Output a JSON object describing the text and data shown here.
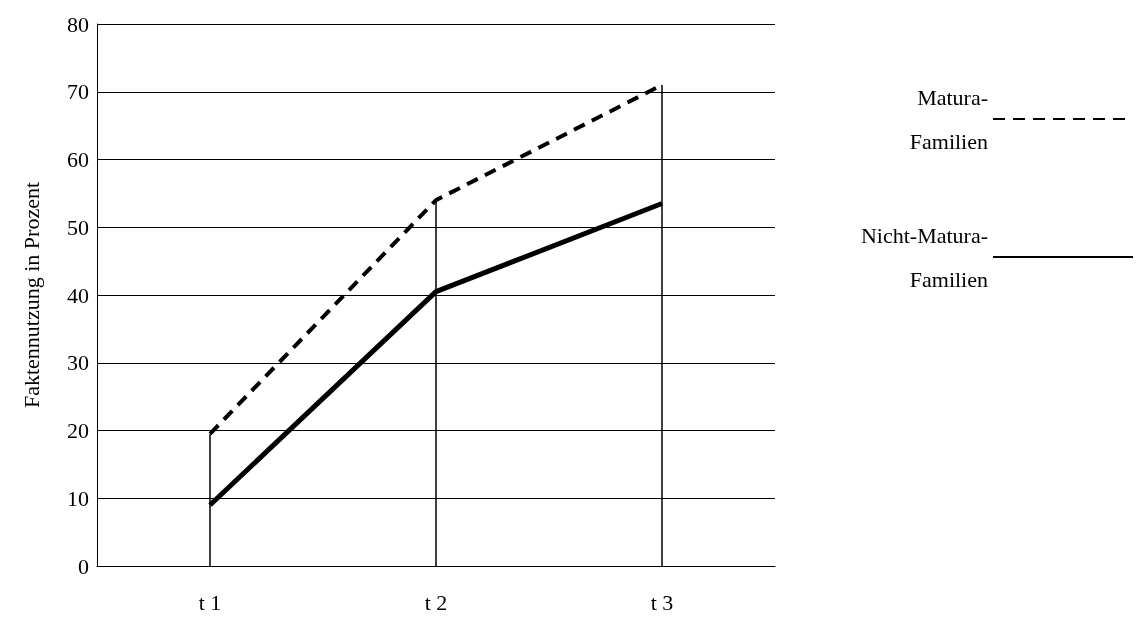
{
  "chart_data": {
    "type": "line",
    "ylabel": "Faktennutzung in Prozent",
    "categories": [
      "t 1",
      "t 2",
      "t 3"
    ],
    "series": [
      {
        "name": "Matura-Familien",
        "color": "#000000",
        "line_style": "dashed",
        "values": [
          19.5,
          54,
          71
        ]
      },
      {
        "name": "Nicht-Matura-Familien",
        "color": "#000000",
        "line_style": "solid",
        "values": [
          9,
          40.5,
          53.5
        ]
      }
    ],
    "ylim": [
      0,
      80
    ],
    "yticks": [
      0,
      10,
      20,
      30,
      40,
      50,
      60,
      70,
      80
    ],
    "grid": "y",
    "legend": "right",
    "marker": "none",
    "ref_lines": [
      {
        "axis": "x",
        "value": "t 1",
        "color": "#000000"
      },
      {
        "axis": "x",
        "value": "t 2",
        "color": "#000000"
      },
      {
        "axis": "x",
        "value": "t 3",
        "color": "#000000"
      }
    ]
  }
}
